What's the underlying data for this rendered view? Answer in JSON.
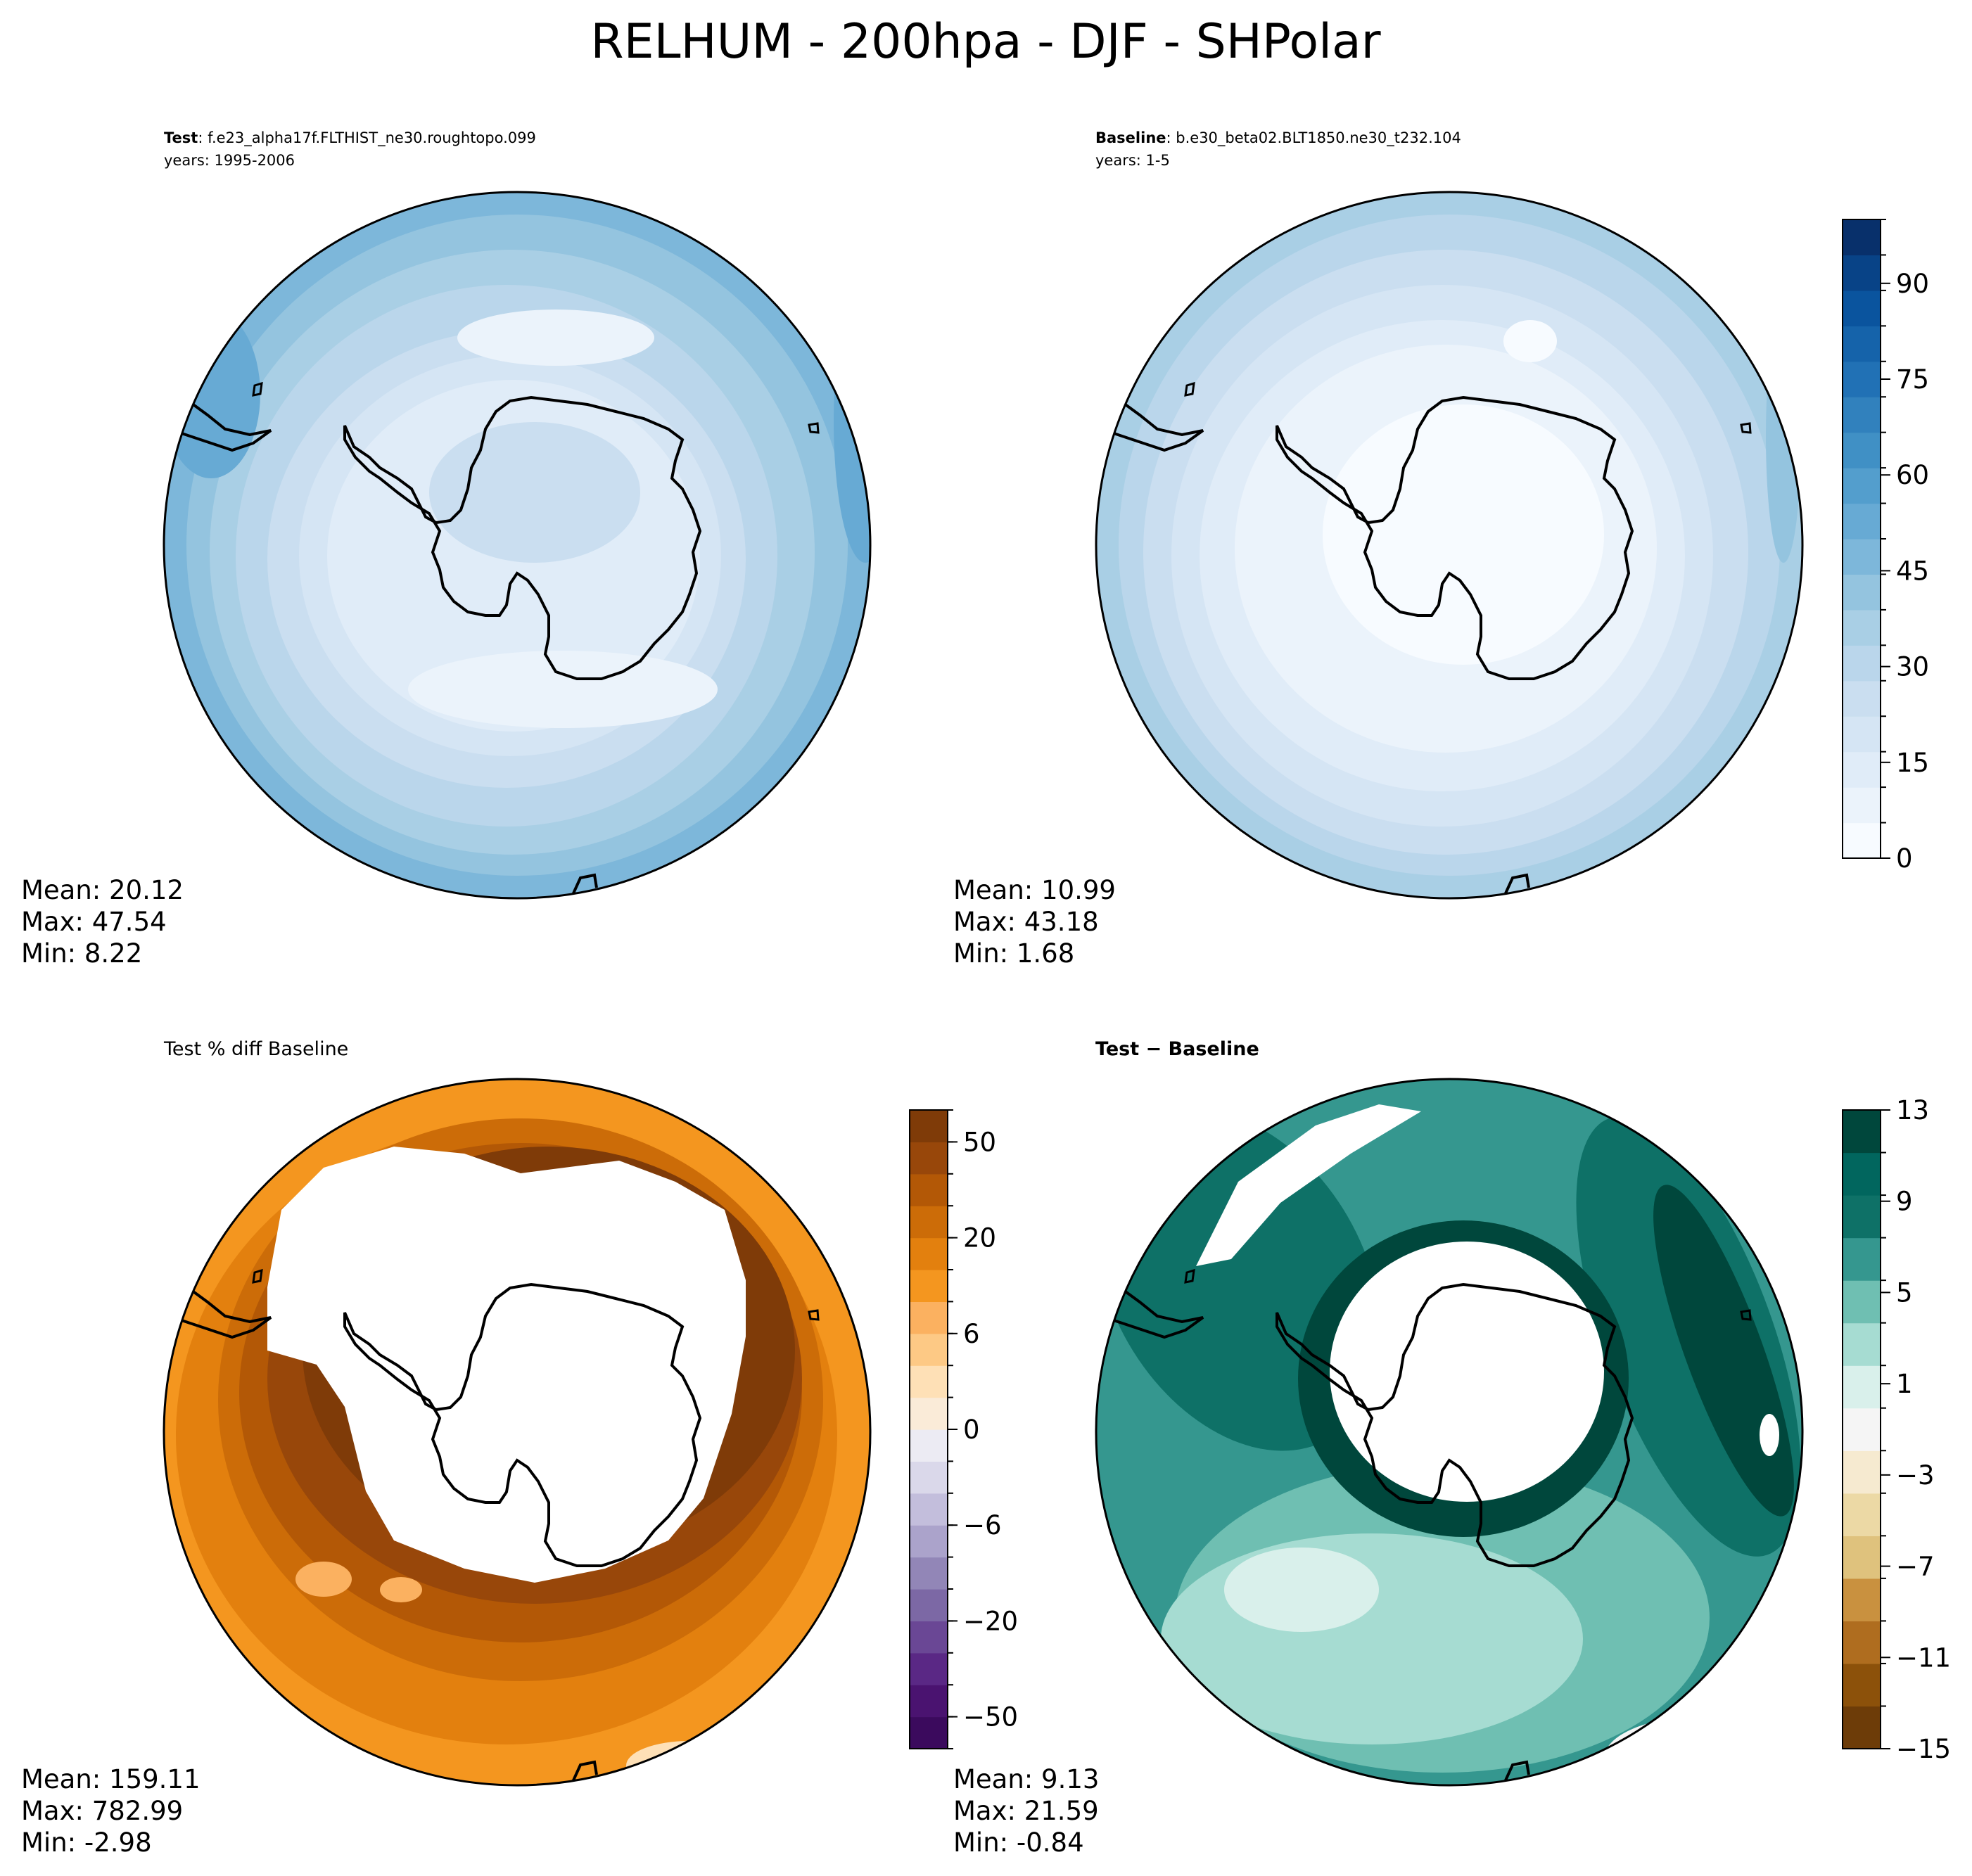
{
  "title": "RELHUM - 200hpa - DJF - SHPolar",
  "panels": [
    {
      "id": "test",
      "label_bold": "Test",
      "label_rest": ": f.e23_alpha17f.FLTHIST_ne30.roughtopo.099",
      "years": "years: 1995-2006",
      "stats": {
        "mean": "Mean: 20.12",
        "max": "Max: 47.54",
        "min": "Min:  8.22"
      }
    },
    {
      "id": "baseline",
      "label_bold": "Baseline",
      "label_rest": ": b.e30_beta02.BLT1850.ne30_t232.104",
      "years": "years: 1-5",
      "stats": {
        "mean": "Mean: 10.99",
        "max": "Max: 43.18",
        "min": "Min:  1.68"
      }
    },
    {
      "id": "pctdiff",
      "label_bold": "",
      "label_rest": "Test % diff Baseline",
      "years": "",
      "stats": {
        "mean": "Mean: 159.11",
        "max": "Max: 782.99",
        "min": "Min: -2.98"
      }
    },
    {
      "id": "diff",
      "label_bold": "Test − Baseline",
      "label_rest": "",
      "years": "",
      "stats": {
        "mean": "Mean:  9.13",
        "max": "Max: 21.59",
        "min": "Min: -0.84"
      }
    }
  ],
  "colorbars": {
    "blues": {
      "colors": [
        "#f7fbff",
        "#ebf3fb",
        "#e0ecf8",
        "#d5e5f4",
        "#cadef0",
        "#bad6eb",
        "#a9cfe5",
        "#94c4df",
        "#7db7da",
        "#67aad4",
        "#539ecd",
        "#4090c5",
        "#3181bd",
        "#2171b5",
        "#1563aa",
        "#0a549e",
        "#084387",
        "#08306b"
      ],
      "ticks": [
        "0",
        "15",
        "30",
        "45",
        "60",
        "75",
        "90"
      ],
      "range": [
        0,
        100
      ]
    },
    "puor": {
      "colors": [
        "#3b0a5d",
        "#4a1370",
        "#5a2885",
        "#6a4795",
        "#7c68a5",
        "#9286b7",
        "#aba3cb",
        "#c3bedc",
        "#dad8ea",
        "#ecebf3",
        "#faebd8",
        "#fee0b6",
        "#fdc985",
        "#fbb160",
        "#f4961f",
        "#e3800e",
        "#cc6c08",
        "#b35806",
        "#98470a",
        "#7f3b08"
      ],
      "ticks": [
        "−50",
        "−20",
        "−6",
        "0",
        "6",
        "20",
        "50"
      ],
      "tick_index": [
        1,
        4,
        7,
        10,
        13,
        16,
        19
      ]
    },
    "brbg": {
      "colors": [
        "#6d3c08",
        "#8c510a",
        "#af6d1f",
        "#c9913f",
        "#dfc27d",
        "#ecd9a5",
        "#f6ead0",
        "#f5f5f5",
        "#d9f0eb",
        "#a6dcd2",
        "#6fbfb2",
        "#35978f",
        "#0e7167",
        "#01665e",
        "#00473c"
      ],
      "ticks": [
        "−15",
        "−11",
        "−7",
        "−3",
        "1",
        "5",
        "9",
        "13"
      ],
      "range": [
        -15,
        13
      ]
    }
  },
  "chart_data": [
    {
      "type": "heatmap",
      "panel": "test",
      "title": "Test : f.e23_alpha17f.FLTHIST_ne30.roughtopo.099",
      "subtitle": "years: 1995-2006",
      "variable": "RELHUM",
      "level": "200hpa",
      "season": "DJF",
      "region": "SHPolar",
      "colorbar": "blues",
      "mean": 20.12,
      "max": 47.54,
      "min": 8.22
    },
    {
      "type": "heatmap",
      "panel": "baseline",
      "title": "Baseline : b.e30_beta02.BLT1850.ne30_t232.104",
      "subtitle": "years: 1-5",
      "variable": "RELHUM",
      "level": "200hpa",
      "season": "DJF",
      "region": "SHPolar",
      "colorbar": "blues",
      "colorbar_ticks": [
        0,
        15,
        30,
        45,
        60,
        75,
        90
      ],
      "colorbar_range": [
        0,
        100
      ],
      "mean": 10.99,
      "max": 43.18,
      "min": 1.68
    },
    {
      "type": "heatmap",
      "panel": "pctdiff",
      "title": "Test % diff Baseline",
      "colorbar": "puor",
      "colorbar_ticks": [
        -50,
        -20,
        -6,
        0,
        6,
        20,
        50
      ],
      "mean": 159.11,
      "max": 782.99,
      "min": -2.98
    },
    {
      "type": "heatmap",
      "panel": "diff",
      "title": "Test − Baseline",
      "colorbar": "brbg",
      "colorbar_ticks": [
        -15,
        -11,
        -7,
        -3,
        1,
        5,
        9,
        13
      ],
      "colorbar_range": [
        -15,
        13
      ],
      "mean": 9.13,
      "max": 21.59,
      "min": -0.84
    }
  ]
}
